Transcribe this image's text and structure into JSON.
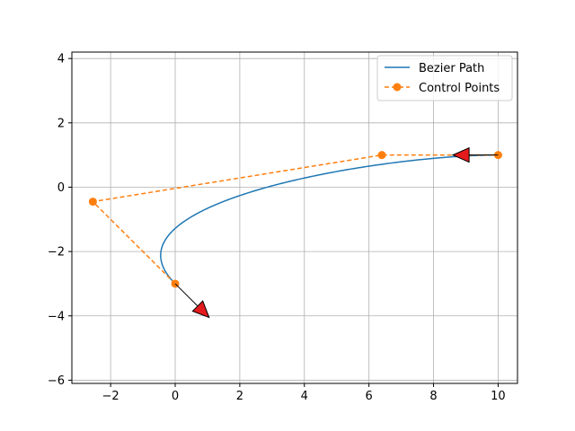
{
  "chart_data": {
    "type": "line",
    "title": "",
    "xlabel": "",
    "ylabel": "",
    "xlim": [
      -3.2,
      10.6
    ],
    "ylim": [
      -6.1,
      4.2
    ],
    "grid": true,
    "legend_position": "upper-right",
    "x_ticks": [
      -2,
      0,
      2,
      4,
      6,
      8,
      10
    ],
    "y_ticks": [
      -6,
      -4,
      -2,
      0,
      2,
      4
    ],
    "series": [
      {
        "name": "Bezier Path",
        "color": "#1f77b4",
        "style": "solid",
        "control_points_used": [
          [
            0,
            -3
          ],
          [
            -2.55,
            -0.45
          ],
          [
            6.4,
            1.0
          ],
          [
            10,
            1.0
          ]
        ]
      },
      {
        "name": "Control Points",
        "color": "#ff7f0e",
        "style": "dashed",
        "marker": "circle",
        "x": [
          0,
          -2.55,
          6.4,
          10
        ],
        "y": [
          -3,
          -0.45,
          1.0,
          1.0
        ]
      }
    ],
    "arrows": [
      {
        "from": [
          0,
          -3
        ],
        "to": [
          1.05,
          -4.05
        ],
        "color": "#e41a1c"
      },
      {
        "from": [
          10,
          1.0
        ],
        "to": [
          8.6,
          1.0
        ],
        "color": "#e41a1c"
      }
    ]
  }
}
